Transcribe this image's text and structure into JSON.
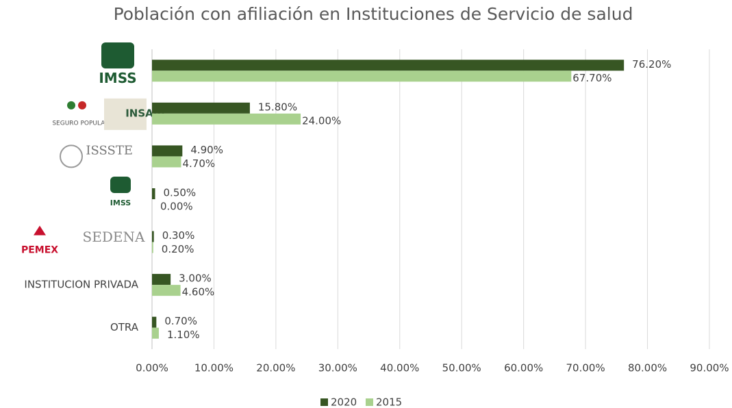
{
  "chart_data": {
    "type": "hbar",
    "title": "Población con afiliación en Instituciones de Servicio de salud",
    "categories": [
      [
        "IMSS"
      ],
      [
        "SEGURO POPULAR",
        "INSABI"
      ],
      [
        "ISSSTE"
      ],
      [
        "IMSS"
      ],
      [
        "PEMEX",
        "SEDENA"
      ],
      [
        "INSTITUCION PRIVADA"
      ],
      [
        "OTRA"
      ]
    ],
    "series": [
      {
        "name": "2020",
        "color": "#375623",
        "values": [
          76.2,
          15.8,
          4.9,
          0.5,
          0.3,
          3.0,
          0.7
        ],
        "value_labels": [
          "76.20%",
          "15.80%",
          "4.90%",
          "0.50%",
          "0.30%",
          "3.00%",
          "0.70%"
        ]
      },
      {
        "name": "2015",
        "color": "#a9d18e",
        "values": [
          67.7,
          24.0,
          4.7,
          0.0,
          0.2,
          4.6,
          1.1
        ],
        "value_labels": [
          "67.70%",
          "24.00%",
          "4.70%",
          "0.00%",
          "0.20%",
          "4.60%",
          "1.10%"
        ]
      }
    ],
    "xlim": [
      0,
      90
    ],
    "xticks": [
      {
        "value": 0,
        "label": "0.00%"
      },
      {
        "value": 10,
        "label": "10.00%"
      },
      {
        "value": 20,
        "label": "20.00%"
      },
      {
        "value": 30,
        "label": "30.00%"
      },
      {
        "value": 40,
        "label": "40.00%"
      },
      {
        "value": 50,
        "label": "50.00%"
      },
      {
        "value": 60,
        "label": "60.00%"
      },
      {
        "value": 70,
        "label": "70.00%"
      },
      {
        "value": 80,
        "label": "80.00%"
      },
      {
        "value": 90,
        "label": "90.00%"
      }
    ],
    "grid": true,
    "legend": "bottom"
  }
}
